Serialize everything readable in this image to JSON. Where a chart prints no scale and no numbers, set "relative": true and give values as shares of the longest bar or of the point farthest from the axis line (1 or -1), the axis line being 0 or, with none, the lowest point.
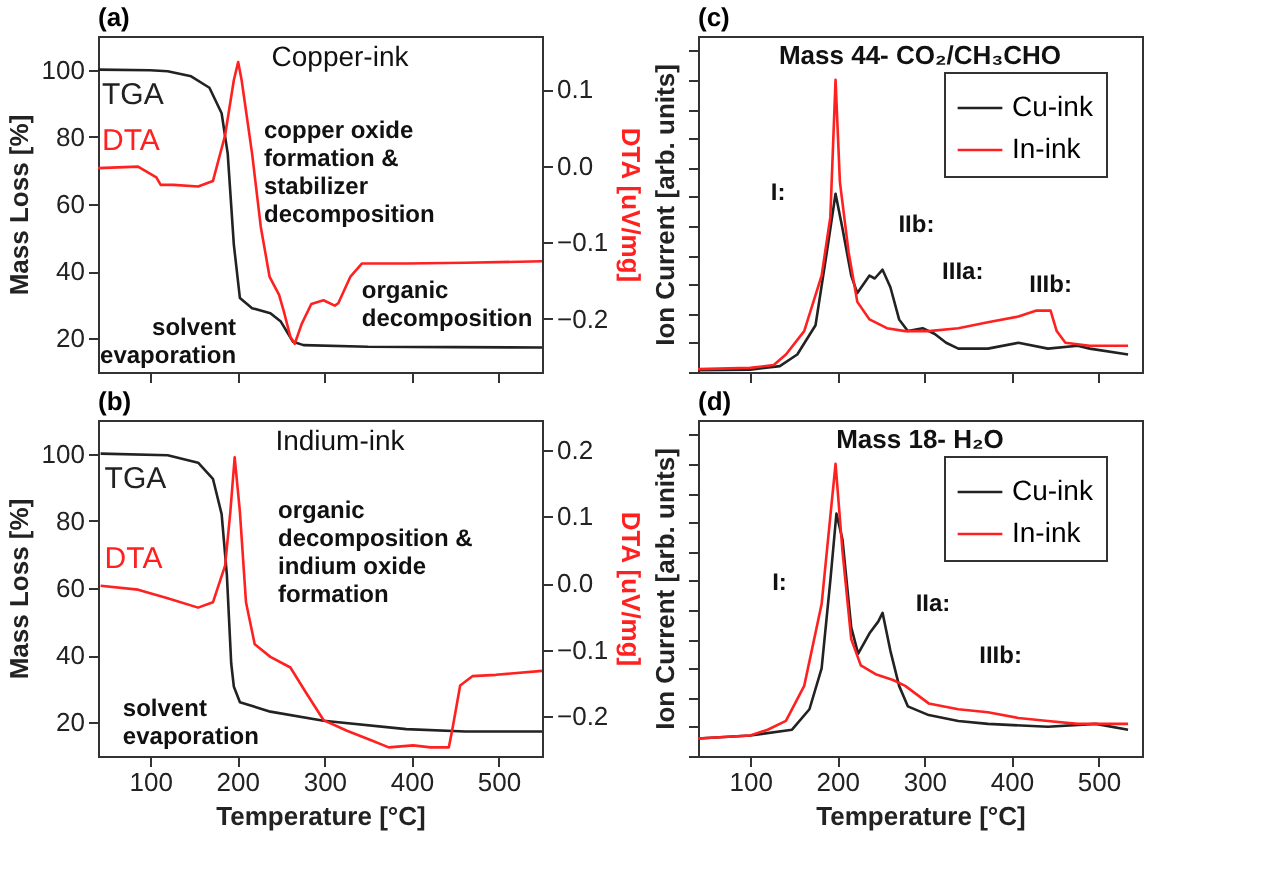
{
  "chart_data": [
    {
      "type": "line",
      "title": "(a)",
      "subtitle": "Copper-ink",
      "ylabel": "Mass Loss [%]",
      "y2label": "DTA [uV/mg]",
      "xlim": [
        40,
        550
      ],
      "xticks": [
        100,
        200,
        300,
        400,
        500
      ],
      "ylim": [
        10,
        110
      ],
      "yticks": [
        20,
        40,
        60,
        80,
        100
      ],
      "y2lim": [
        -0.27,
        0.17
      ],
      "y2ticks": [
        0.1,
        {
          "value": 0,
          "label": "0.0"
        },
        -0.1,
        -0.2
      ],
      "tick_labels": "y",
      "legend": false,
      "grid": false,
      "series": [
        {
          "name": "TGA",
          "color": "#222222",
          "x": [
            40,
            100,
            120,
            147,
            168,
            182,
            189,
            196,
            203,
            217,
            238,
            250,
            264,
            276,
            350,
            450,
            550
          ],
          "values": [
            100,
            99.8,
            99.5,
            98,
            94.6,
            87,
            75,
            48,
            32,
            29,
            27.5,
            25,
            19,
            18,
            17.5,
            17.4,
            17.3
          ]
        },
        {
          "name": "DTA",
          "color": "#ff2020",
          "axis": "y2",
          "x": [
            40,
            86,
            107,
            112,
            127,
            155,
            172,
            186,
            196,
            201,
            205,
            217,
            227,
            237,
            248,
            254,
            261,
            266,
            274,
            285,
            299,
            312,
            316,
            330,
            343,
            394,
            462,
            550
          ],
          "values": [
            -0.003,
            -0.001,
            -0.015,
            -0.025,
            -0.025,
            -0.027,
            -0.02,
            0.04,
            0.112,
            0.136,
            0.112,
            0.016,
            -0.08,
            -0.145,
            -0.169,
            -0.193,
            -0.224,
            -0.233,
            -0.207,
            -0.181,
            -0.176,
            -0.183,
            -0.18,
            -0.145,
            -0.128,
            -0.128,
            -0.127,
            -0.125
          ]
        }
      ],
      "annotations": [
        {
          "text": "solvent\nevaporation",
          "x": 217,
          "y": 27.5
        },
        "copper oxide\nformation &\nstabilizer\ndecomposition",
        {
          "text": "organic\ndecomposition",
          "x": 320,
          "y": 29
        }
      ]
    },
    {
      "type": "line",
      "title": "(b)",
      "subtitle": "Indium-ink",
      "xlabel": "Temperature [°C]",
      "ylabel": "Mass Loss [%]",
      "y2label": "DTA [uV/mg]",
      "xlim": [
        40,
        550
      ],
      "xticks": [
        100,
        200,
        300,
        400,
        500
      ],
      "ylim": [
        10,
        110
      ],
      "yticks": [
        20,
        40,
        60,
        80,
        100
      ],
      "y2lim": [
        -0.26,
        0.245
      ],
      "y2ticks": [
        0.2,
        0.1,
        {
          "value": 0,
          "label": "0.0"
        },
        -0.1,
        -0.2
      ],
      "legend": false,
      "grid": false,
      "series": [
        {
          "name": "TGA",
          "color": "#222222",
          "x": [
            43,
            120,
            155,
            172,
            182,
            188,
            193,
            196,
            203,
            238,
            299,
            394,
            462,
            550
          ],
          "values": [
            100,
            99.5,
            97.3,
            92.5,
            82,
            64,
            37.6,
            30.7,
            26,
            23.2,
            20.5,
            18,
            17.3,
            17.3
          ]
        },
        {
          "name": "DTA",
          "color": "#ff2020",
          "axis": "y2",
          "x": [
            43,
            86,
            120,
            155,
            172,
            186,
            192,
            197,
            203,
            210,
            220,
            238,
            261,
            279,
            299,
            326,
            353,
            374,
            402,
            422,
            443,
            447,
            456,
            470,
            497,
            550
          ],
          "values": [
            -0.004,
            -0.01,
            -0.023,
            -0.037,
            -0.029,
            0.026,
            0.107,
            0.189,
            0.107,
            -0.029,
            -0.092,
            -0.111,
            -0.127,
            -0.165,
            -0.206,
            -0.222,
            -0.236,
            -0.247,
            -0.244,
            -0.247,
            -0.247,
            -0.22,
            -0.154,
            -0.14,
            -0.138,
            -0.132
          ]
        }
      ],
      "annotations": [
        {
          "text": "solvent\nevaporation",
          "x": 188,
          "y": 32
        },
        "organic\ndecomposition &\nindium oxide\nformation"
      ]
    },
    {
      "type": "line",
      "title": "(c)",
      "subtitle": "Mass 44- CO₂/CH₃CHO",
      "ylabel": "Ion Current [arb. units]",
      "relative": true,
      "xlim": [
        40,
        550
      ],
      "xticks": [
        100,
        200,
        300,
        400,
        500
      ],
      "tick_labels": false,
      "legend": "top right",
      "grid": false,
      "series": [
        {
          "name": "Cu-ink",
          "color": "#222222",
          "x": [
            40,
            100,
            134,
            154,
            175,
            189,
            198,
            206,
            216,
            223,
            237,
            243,
            252,
            261,
            271,
            281,
            298,
            312,
            325,
            339,
            373,
            408,
            442,
            476,
            490,
            534
          ],
          "values": [
            0.006,
            0.008,
            0.02,
            0.06,
            0.16,
            0.43,
            0.61,
            0.49,
            0.33,
            0.27,
            0.33,
            0.32,
            0.35,
            0.29,
            0.18,
            0.14,
            0.15,
            0.13,
            0.1,
            0.08,
            0.08,
            0.1,
            0.08,
            0.09,
            0.08,
            0.06
          ]
        },
        {
          "name": "In-ink",
          "color": "#ff2020",
          "x": [
            40,
            100,
            127,
            141,
            162,
            182,
            192,
            198,
            203,
            213,
            223,
            237,
            257,
            278,
            305,
            339,
            373,
            408,
            428,
            445,
            452,
            462,
            490,
            534
          ],
          "values": [
            0.01,
            0.014,
            0.024,
            0.06,
            0.14,
            0.33,
            0.53,
            1.0,
            0.65,
            0.41,
            0.24,
            0.18,
            0.15,
            0.14,
            0.14,
            0.15,
            0.17,
            0.19,
            0.21,
            0.21,
            0.14,
            0.1,
            0.09,
            0.09
          ]
        }
      ],
      "annotations": [
        {
          "text": "I:",
          "x": 178,
          "y": 0.48
        },
        {
          "text": "IIb:",
          "x": 261,
          "y": 0.37
        },
        {
          "text": "IIIa:",
          "x": 305,
          "y": 0.14
        },
        {
          "text": "IIIb:",
          "x": 445,
          "y": 0.22
        }
      ]
    },
    {
      "type": "line",
      "title": "(d)",
      "subtitle": "Mass 18- H₂O",
      "xlabel": "Temperature [°C]",
      "ylabel": "Ion Current [arb. units]",
      "relative": true,
      "xlim": [
        40,
        550
      ],
      "xticks": [
        100,
        200,
        300,
        400,
        500
      ],
      "tick_labels": "x",
      "legend": "top right",
      "grid": false,
      "series": [
        {
          "name": "Cu-ink",
          "color": "#222222",
          "x": [
            40,
            100,
            148,
            168,
            182,
            192,
            199,
            206,
            216,
            224,
            237,
            247,
            252,
            261,
            271,
            281,
            305,
            339,
            373,
            442,
            497,
            534
          ],
          "values": [
            0.06,
            0.07,
            0.09,
            0.16,
            0.3,
            0.6,
            0.83,
            0.74,
            0.44,
            0.35,
            0.42,
            0.46,
            0.49,
            0.36,
            0.24,
            0.17,
            0.14,
            0.12,
            0.11,
            0.1,
            0.11,
            0.09
          ]
        },
        {
          "name": "In-ink",
          "color": "#ff2020",
          "x": [
            40,
            100,
            120,
            141,
            162,
            182,
            198,
            206,
            216,
            227,
            244,
            264,
            278,
            305,
            339,
            373,
            408,
            442,
            476,
            534
          ],
          "values": [
            0.06,
            0.07,
            0.09,
            0.12,
            0.24,
            0.52,
            1.0,
            0.7,
            0.4,
            0.31,
            0.28,
            0.26,
            0.24,
            0.18,
            0.16,
            0.15,
            0.13,
            0.12,
            0.11,
            0.11
          ]
        }
      ],
      "annotations": [
        {
          "text": "I:",
          "x": 175,
          "y": 0.46
        },
        {
          "text": "IIa:",
          "x": 264,
          "y": 0.47
        },
        {
          "text": "IIIb:",
          "x": 360,
          "y": 0.155
        }
      ]
    }
  ]
}
